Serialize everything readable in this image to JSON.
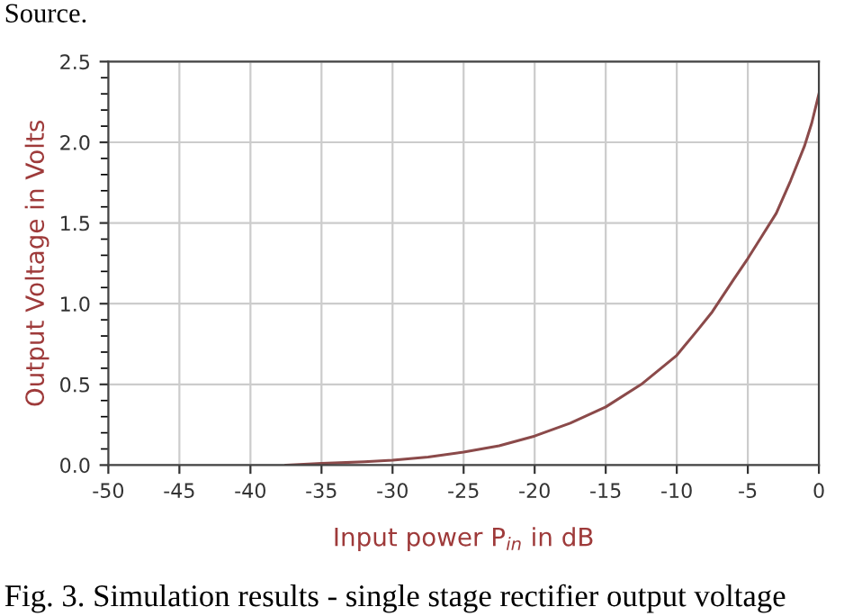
{
  "chart_data": {
    "type": "line",
    "xlabel": "Input power P$_{in}$ in dB",
    "ylabel": "Output Voltage in Volts",
    "annotations": [
      "Source.",
      "Fig. 3. Simulation results - single stage rectifier output voltage"
    ],
    "x": [
      -37.5,
      -35,
      -32,
      -30,
      -27.5,
      -25,
      -22.5,
      -20,
      -17.5,
      -15,
      -12.5,
      -10,
      -8.5,
      -7.5,
      -6,
      -5,
      -4,
      -3,
      -2,
      -1,
      -0.5,
      0
    ],
    "series": [
      {
        "color": "#8b4a4a",
        "values": [
          0.0,
          0.01,
          0.02,
          0.03,
          0.05,
          0.08,
          0.12,
          0.18,
          0.26,
          0.36,
          0.5,
          0.68,
          0.84,
          0.95,
          1.15,
          1.28,
          1.42,
          1.56,
          1.76,
          1.98,
          2.12,
          2.3
        ]
      }
    ],
    "xlim": [
      -50,
      0
    ],
    "xticks": [
      -50,
      -45,
      -40,
      -35,
      -30,
      -25,
      -20,
      -15,
      -10,
      -5,
      0
    ],
    "ylim": [
      0,
      2.5
    ],
    "yticks": [
      {
        "value": 0,
        "label": "0.0"
      },
      {
        "value": 0.5,
        "label": "0.5"
      },
      {
        "value": 1,
        "label": "1.0"
      },
      {
        "value": 1.5,
        "label": "1.5"
      },
      {
        "value": 2,
        "label": "2.0"
      },
      {
        "value": 2.5,
        "label": "2.5"
      }
    ],
    "grid": true,
    "marker": "none",
    "line_style": "solid"
  }
}
